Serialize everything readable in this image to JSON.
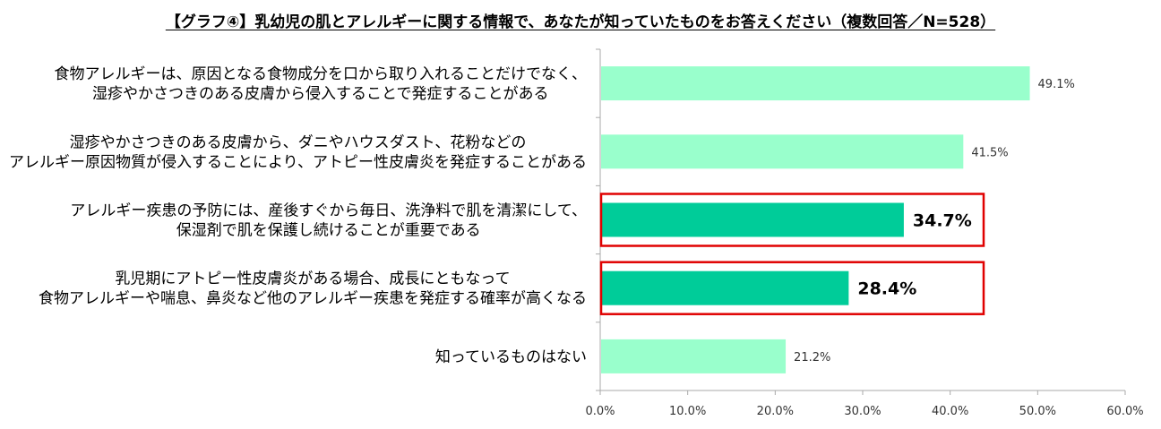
{
  "chart_data": {
    "type": "bar",
    "orientation": "horizontal",
    "title": "【グラフ④】乳幼児の肌とアレルギーに関する情報で、あなたが知っていたものをお答えください（複数回答／N=528）",
    "categories": [
      [
        "食物アレルギーは、原因となる食物成分を口から取り入れることだけでなく、",
        "湿疹やかさつきのある皮膚から侵入することで発症することがある"
      ],
      [
        "湿疹やかさつきのある皮膚から、ダニやハウスダスト、花粉などの",
        "アレルギー原因物質が侵入することにより、アトピー性皮膚炎を発症することがある"
      ],
      [
        "アレルギー疾患の予防には、産後すぐから毎日、洗浄料で肌を清潔にして、",
        "保湿剤で肌を保護し続けることが重要である"
      ],
      [
        "乳児期にアトピー性皮膚炎がある場合、成長にともなって",
        "食物アレルギーや喘息、鼻炎など他のアレルギー疾患を発症する確率が高くなる"
      ],
      [
        "知っているものはない"
      ]
    ],
    "values": [
      49.1,
      41.5,
      34.7,
      28.4,
      21.2
    ],
    "value_labels": [
      "49.1%",
      "41.5%",
      "34.7%",
      "28.4%",
      "21.2%"
    ],
    "highlighted": [
      false,
      false,
      true,
      true,
      false
    ],
    "xlim": [
      0,
      60
    ],
    "xticks": [
      0,
      10,
      20,
      30,
      40,
      50,
      60
    ],
    "xtick_labels": [
      "0.0%",
      "10.0%",
      "20.0%",
      "30.0%",
      "40.0%",
      "50.0%",
      "60.0%"
    ],
    "grid": false,
    "colors": {
      "bar": "#99ffcc",
      "bar_highlight": "#00cc99",
      "box": "#e00000",
      "axis": "#aaaaaa"
    }
  }
}
